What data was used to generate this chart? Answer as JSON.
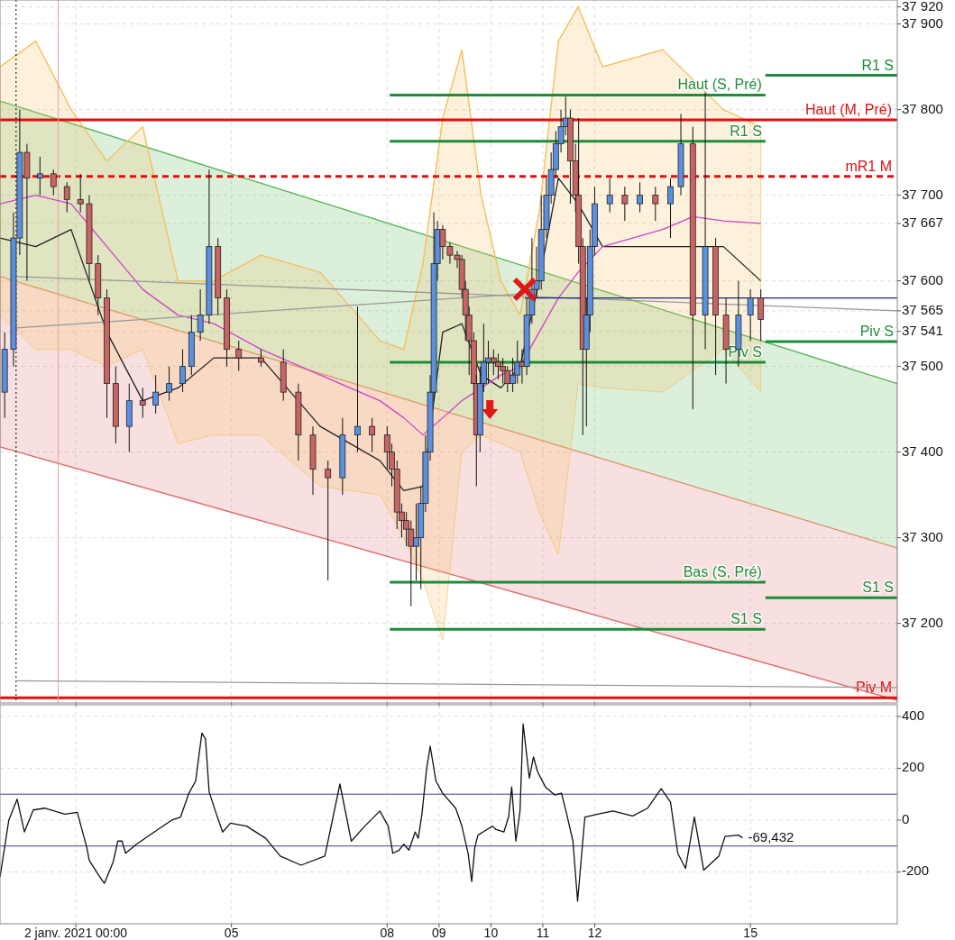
{
  "chart_data": [
    {
      "type": "candlestick",
      "tick_labels": "y",
      "grid": true,
      "xlim": [
        0.54,
        17.83
      ],
      "ylim": [
        37107,
        37928
      ],
      "xticks": [
        2,
        5,
        8,
        9,
        10,
        11,
        12,
        15
      ],
      "yticks": [
        {
          "value": 37920,
          "label": "37 920"
        },
        {
          "value": 37900,
          "label": "37 900"
        },
        {
          "value": 37800,
          "label": "37 800"
        },
        {
          "value": 37700,
          "label": "37 700"
        },
        {
          "value": 37667,
          "label": "37 667"
        },
        {
          "value": 37600,
          "label": "37 600"
        },
        {
          "value": 37565,
          "label": "37 565"
        },
        {
          "value": 37541,
          "label": "37 541"
        },
        {
          "value": 37500,
          "label": "37 500"
        },
        {
          "value": 37400,
          "label": "37 400"
        },
        {
          "value": 37300,
          "label": "37 300"
        },
        {
          "value": 37200,
          "label": "37 200"
        }
      ],
      "x": [
        0.63,
        0.8,
        0.92,
        1.06,
        1.31,
        1.57,
        1.83,
        2.09,
        2.26,
        2.43,
        2.6,
        2.77,
        3.03,
        3.29,
        3.54,
        3.8,
        4.06,
        4.23,
        4.4,
        4.57,
        4.74,
        4.91,
        5.14,
        5.57,
        6.0,
        6.29,
        6.57,
        6.86,
        7.14,
        7.43,
        7.71,
        8.0,
        8.09,
        8.19,
        8.28,
        8.37,
        8.46,
        8.56,
        8.65,
        8.74,
        8.83,
        8.9,
        8.97,
        9.07,
        9.21,
        9.35,
        9.44,
        9.51,
        9.58,
        9.67,
        9.72,
        9.79,
        9.86,
        9.95,
        10.05,
        10.14,
        10.23,
        10.32,
        10.42,
        10.51,
        10.6,
        10.69,
        10.79,
        10.88,
        10.97,
        11.07,
        11.16,
        11.25,
        11.35,
        11.44,
        11.53,
        11.63,
        11.69,
        11.77,
        11.84,
        11.91,
        12.0,
        12.29,
        12.58,
        12.87,
        13.17,
        13.46,
        13.66,
        13.89,
        14.13,
        14.33,
        14.53,
        14.77,
        15.0,
        15.2
      ],
      "ohlc": [
        [
          37470,
          37540,
          37440,
          37520
        ],
        [
          37520,
          37680,
          37500,
          37650
        ],
        [
          37650,
          37800,
          37630,
          37750
        ],
        [
          37750,
          37760,
          37600,
          37720
        ],
        [
          37720,
          37745,
          37700,
          37725
        ],
        [
          37725,
          37730,
          37700,
          37710
        ],
        [
          37710,
          37715,
          37680,
          37695
        ],
        [
          37695,
          37725,
          37680,
          37690
        ],
        [
          37690,
          37700,
          37600,
          37620
        ],
        [
          37620,
          37630,
          37560,
          37580
        ],
        [
          37580,
          37590,
          37440,
          37480
        ],
        [
          37480,
          37500,
          37410,
          37430
        ],
        [
          37430,
          37480,
          37400,
          37460
        ],
        [
          37460,
          37475,
          37440,
          37455
        ],
        [
          37455,
          37490,
          37445,
          37470
        ],
        [
          37470,
          37500,
          37460,
          37480
        ],
        [
          37480,
          37520,
          37470,
          37500
        ],
        [
          37500,
          37560,
          37490,
          37540
        ],
        [
          37540,
          37590,
          37530,
          37560
        ],
        [
          37560,
          37730,
          37550,
          37640
        ],
        [
          37640,
          37650,
          37560,
          37580
        ],
        [
          37580,
          37590,
          37500,
          37520
        ],
        [
          37520,
          37530,
          37495,
          37510
        ],
        [
          37510,
          37520,
          37500,
          37505
        ],
        [
          37505,
          37520,
          37460,
          37470
        ],
        [
          37470,
          37480,
          37390,
          37420
        ],
        [
          37420,
          37430,
          37350,
          37380
        ],
        [
          37380,
          37390,
          37250,
          37370
        ],
        [
          37370,
          37440,
          37350,
          37420
        ],
        [
          37420,
          37570,
          37400,
          37430
        ],
        [
          37430,
          37440,
          37400,
          37420
        ],
        [
          37420,
          37430,
          37380,
          37400
        ],
        [
          37400,
          37410,
          37360,
          37380
        ],
        [
          37380,
          37390,
          37310,
          37330
        ],
        [
          37330,
          37340,
          37300,
          37320
        ],
        [
          37320,
          37330,
          37290,
          37310
        ],
        [
          37310,
          37320,
          37220,
          37290
        ],
        [
          37290,
          37340,
          37250,
          37300
        ],
        [
          37300,
          37360,
          37240,
          37340
        ],
        [
          37340,
          37420,
          37330,
          37400
        ],
        [
          37400,
          37490,
          37390,
          37470
        ],
        [
          37470,
          37680,
          37460,
          37620
        ],
        [
          37620,
          37670,
          37600,
          37660
        ],
        [
          37660,
          37665,
          37625,
          37640
        ],
        [
          37640,
          37645,
          37620,
          37630
        ],
        [
          37630,
          37635,
          37615,
          37625
        ],
        [
          37625,
          37630,
          37580,
          37590
        ],
        [
          37590,
          37600,
          37530,
          37560
        ],
        [
          37560,
          37570,
          37490,
          37530
        ],
        [
          37530,
          37540,
          37460,
          37480
        ],
        [
          37480,
          37490,
          37360,
          37420
        ],
        [
          37420,
          37500,
          37400,
          37480
        ],
        [
          37480,
          37550,
          37470,
          37505
        ],
        [
          37505,
          37530,
          37480,
          37510
        ],
        [
          37510,
          37520,
          37490,
          37505
        ],
        [
          37505,
          37515,
          37485,
          37500
        ],
        [
          37500,
          37510,
          37480,
          37495
        ],
        [
          37495,
          37500,
          37470,
          37480
        ],
        [
          37480,
          37510,
          37470,
          37490
        ],
        [
          37490,
          37530,
          37480,
          37505
        ],
        [
          37505,
          37520,
          37480,
          37500
        ],
        [
          37500,
          37580,
          37490,
          37560
        ],
        [
          37560,
          37650,
          37550,
          37590
        ],
        [
          37590,
          37640,
          37580,
          37600
        ],
        [
          37600,
          37700,
          37590,
          37660
        ],
        [
          37660,
          37720,
          37650,
          37700
        ],
        [
          37700,
          37750,
          37690,
          37730
        ],
        [
          37730,
          37775,
          37720,
          37760
        ],
        [
          37760,
          37800,
          37750,
          37780
        ],
        [
          37780,
          37815,
          37770,
          37790
        ],
        [
          37790,
          37800,
          37690,
          37740
        ],
        [
          37740,
          37760,
          37680,
          37700
        ],
        [
          37700,
          37790,
          37620,
          37640
        ],
        [
          37640,
          37650,
          37420,
          37520
        ],
        [
          37520,
          37580,
          37430,
          37560
        ],
        [
          37560,
          37660,
          37540,
          37640
        ],
        [
          37640,
          37710,
          37630,
          37690
        ],
        [
          37690,
          37720,
          37680,
          37700
        ],
        [
          37700,
          37710,
          37670,
          37690
        ],
        [
          37690,
          37715,
          37680,
          37700
        ],
        [
          37700,
          37710,
          37670,
          37690
        ],
        [
          37690,
          37720,
          37650,
          37710
        ],
        [
          37710,
          37795,
          37700,
          37760
        ],
        [
          37760,
          37780,
          37450,
          37560
        ],
        [
          37560,
          37820,
          37520,
          37640
        ],
        [
          37640,
          37650,
          37490,
          37560
        ],
        [
          37560,
          37580,
          37480,
          37520
        ],
        [
          37520,
          37600,
          37500,
          37560
        ],
        [
          37560,
          37590,
          37530,
          37580
        ],
        [
          37580,
          37590,
          37530,
          37555
        ]
      ],
      "series": [
        {
          "type": "line",
          "color": "#5cb85c",
          "x": [
            0.54,
            17.83
          ],
          "values": [
            37810,
            37480
          ],
          "lower": [
            37605,
            37288
          ],
          "upper": [
            37810,
            37480
          ]
        },
        {
          "type": "line",
          "color": "#e07070",
          "x": [
            0.54,
            17.83
          ],
          "values": [
            37406,
            37110
          ],
          "lower": [
            37406,
            37110
          ],
          "upper": [
            37605,
            37288
          ]
        },
        {
          "type": "line",
          "color": "#f0a070",
          "line_style": "dashed",
          "x": [
            0.54,
            17.83
          ],
          "values": [
            37605,
            37288
          ]
        },
        {
          "type": "line",
          "color": "#f5c060",
          "x": [
            0.54,
            1.23,
            1.91,
            2.6,
            3.29,
            3.97,
            4.66,
            5.57,
            6.71,
            7.86,
            8.32,
            8.69,
            9.07,
            9.44,
            9.81,
            10.19,
            10.56,
            10.93,
            11.3,
            11.68,
            12.15,
            13.31,
            14.48,
            15.2
          ],
          "values": [
            37850,
            37880,
            37800,
            37740,
            37780,
            37600,
            37600,
            37630,
            37610,
            37530,
            37520,
            37620,
            37790,
            37870,
            37700,
            37600,
            37560,
            37680,
            37880,
            37920,
            37850,
            37870,
            37800,
            37780
          ],
          "lower": [
            37560,
            37520,
            37520,
            37500,
            37520,
            37410,
            37420,
            37420,
            37360,
            37350,
            37300,
            37250,
            37180,
            37400,
            37420,
            37410,
            37400,
            37330,
            37280,
            37480,
            37475,
            37470,
            37520,
            37470
          ],
          "upper": [
            37850,
            37880,
            37800,
            37740,
            37780,
            37600,
            37600,
            37630,
            37610,
            37530,
            37520,
            37620,
            37790,
            37870,
            37700,
            37600,
            37560,
            37680,
            37880,
            37920,
            37850,
            37870,
            37800,
            37780
          ]
        },
        {
          "type": "line",
          "color": "#222222",
          "x": [
            0.54,
            1.23,
            1.91,
            2.6,
            3.29,
            3.97,
            4.66,
            5.57,
            6.71,
            7.86,
            8.32,
            8.69,
            9.07,
            9.44,
            9.81,
            10.19,
            10.56,
            10.93,
            11.3,
            11.68,
            12.15,
            13.31,
            14.48,
            15.2
          ],
          "values": [
            37650,
            37640,
            37660,
            37540,
            37460,
            37475,
            37510,
            37510,
            37430,
            37390,
            37355,
            37360,
            37540,
            37550,
            37490,
            37475,
            37500,
            37600,
            37720,
            37690,
            37640,
            37640,
            37640,
            37600
          ]
        },
        {
          "type": "line",
          "color": "#cc44cc",
          "x": [
            0.54,
            1.23,
            1.91,
            2.6,
            3.29,
            3.97,
            4.66,
            5.57,
            6.71,
            7.86,
            8.32,
            8.69,
            9.07,
            9.44,
            10.19,
            10.56,
            10.93,
            11.3,
            11.68,
            12.15,
            13.31,
            13.89,
            14.48,
            15.2
          ],
          "values": [
            37690,
            37700,
            37690,
            37640,
            37590,
            37560,
            37550,
            37520,
            37490,
            37460,
            37440,
            37420,
            37440,
            37460,
            37490,
            37500,
            37540,
            37580,
            37610,
            37640,
            37660,
            37675,
            37670,
            37667
          ]
        },
        {
          "type": "line",
          "color": "#999999",
          "x": [
            0.85,
            17.83
          ],
          "values": [
            37605,
            37565
          ]
        },
        {
          "type": "line",
          "color": "#999999",
          "x": [
            0.85,
            10.65
          ],
          "values": [
            37545,
            37585
          ]
        },
        {
          "type": "line",
          "color": "#999999",
          "x": [
            0.85,
            17.83
          ],
          "values": [
            37133,
            37125
          ]
        },
        {
          "type": "line",
          "color": "#1a237e",
          "x": [
            10.65,
            17.83
          ],
          "values": [
            37580,
            37580
          ]
        },
        {
          "type": "line",
          "name": "Haut (S, Pré)",
          "color": "#1e8c3a",
          "x": [
            8.05,
            15.29
          ],
          "values": [
            37817,
            37817
          ]
        },
        {
          "type": "line",
          "name": "R1 S",
          "color": "#1e8c3a",
          "x": [
            8.05,
            15.29
          ],
          "values": [
            37763,
            37763
          ]
        },
        {
          "type": "line",
          "name": "Piv S",
          "color": "#1e8c3a",
          "x": [
            8.05,
            15.29
          ],
          "values": [
            37505,
            37505
          ]
        },
        {
          "type": "line",
          "name": "Bas (S, Pré)",
          "color": "#1e8c3a",
          "x": [
            8.05,
            15.29
          ],
          "values": [
            37248,
            37248
          ]
        },
        {
          "type": "line",
          "name": "S1 S",
          "color": "#1e8c3a",
          "x": [
            8.05,
            15.29
          ],
          "values": [
            37193,
            37193
          ]
        },
        {
          "type": "line",
          "name": "R1 S",
          "color": "#1e8c3a",
          "x": [
            15.29,
            17.83
          ],
          "values": [
            37840,
            37840
          ]
        },
        {
          "type": "line",
          "name": "Piv S",
          "color": "#1e8c3a",
          "x": [
            15.29,
            17.83
          ],
          "values": [
            37529,
            37529
          ]
        },
        {
          "type": "line",
          "name": "S1 S",
          "color": "#1e8c3a",
          "x": [
            15.29,
            17.83
          ],
          "values": [
            37230,
            37230
          ]
        }
      ],
      "ref_lines": [
        {
          "axis": "y",
          "value": 37788,
          "label": "Haut (M, Pré)",
          "color": "#e01010"
        },
        {
          "axis": "y",
          "value": 37722,
          "label": "mR1 M",
          "color": "#e01010",
          "line_style": "dashed"
        },
        {
          "axis": "y",
          "value": 37113,
          "label": "Piv M",
          "color": "#e01010"
        },
        {
          "axis": "x",
          "value": 0.85,
          "color": "#000000",
          "line_style": "dotted"
        },
        {
          "axis": "x",
          "value": 1.66,
          "color": "#e8a0a0"
        }
      ]
    },
    {
      "type": "line",
      "grid": true,
      "xlim": [
        0.54,
        17.83
      ],
      "ylim": [
        -400,
        445
      ],
      "xticks": [
        {
          "value": 2,
          "label": "2 janv. 2021 00:00"
        },
        {
          "value": 5,
          "label": "05"
        },
        {
          "value": 8,
          "label": "08"
        },
        {
          "value": 9,
          "label": "09"
        },
        {
          "value": 10,
          "label": "10"
        },
        {
          "value": 11,
          "label": "11"
        },
        {
          "value": 12,
          "label": "12"
        },
        {
          "value": 15,
          "label": "15"
        }
      ],
      "yticks": [
        400,
        200,
        0,
        -200
      ],
      "annotations": [
        {
          "text": "-69,432",
          "x": 14.85,
          "y": -69
        }
      ],
      "series": [
        {
          "color": "#111111",
          "x": [
            0.54,
            0.71,
            0.87,
            1.01,
            1.18,
            1.4,
            1.79,
            2.03,
            2.21,
            2.26,
            2.43,
            2.55,
            2.72,
            2.81,
            2.89,
            2.96,
            3.17,
            3.51,
            3.85,
            4.02,
            4.18,
            4.31,
            4.43,
            4.5,
            4.57,
            4.71,
            4.83,
            4.98,
            5.29,
            5.66,
            5.94,
            6.34,
            6.8,
            7.09,
            7.31,
            7.57,
            7.86,
            8.02,
            8.11,
            8.23,
            8.32,
            8.42,
            8.54,
            8.6,
            8.67,
            8.76,
            8.83,
            8.94,
            9.07,
            9.32,
            9.44,
            9.56,
            9.63,
            9.69,
            9.75,
            9.88,
            10.03,
            10.09,
            10.25,
            10.34,
            10.4,
            10.48,
            10.56,
            10.62,
            10.74,
            10.82,
            10.9,
            11.05,
            11.23,
            11.36,
            11.46,
            11.58,
            11.67,
            11.81,
            12.06,
            12.35,
            12.73,
            13.02,
            13.28,
            13.46,
            13.6,
            13.75,
            13.92,
            14.1,
            14.39,
            14.51,
            14.77,
            14.85
          ],
          "values": [
            -220,
            0,
            81,
            -46,
            39,
            46,
            23,
            30,
            -104,
            -155,
            -209,
            -244,
            -162,
            -81,
            -81,
            -128,
            -93,
            -46,
            0,
            12,
            104,
            151,
            336,
            313,
            109,
            23,
            -46,
            -12,
            -23,
            -70,
            -139,
            -174,
            -139,
            139,
            -81,
            -23,
            35,
            -23,
            -128,
            -116,
            -93,
            -116,
            -46,
            -70,
            23,
            197,
            285,
            151,
            104,
            46,
            -23,
            -128,
            -237,
            -104,
            -58,
            -42,
            -23,
            -35,
            -46,
            12,
            128,
            -81,
            35,
            371,
            162,
            244,
            186,
            128,
            97,
            104,
            23,
            -81,
            -313,
            12,
            23,
            35,
            16,
            46,
            121,
            70,
            -128,
            -186,
            12,
            -193,
            -139,
            -63,
            -58,
            -69
          ]
        }
      ],
      "ref_lines": [
        {
          "axis": "y",
          "value": 100,
          "color": "#3a3aa0"
        },
        {
          "axis": "y",
          "value": -100,
          "color": "#3a3aa0"
        }
      ]
    }
  ]
}
